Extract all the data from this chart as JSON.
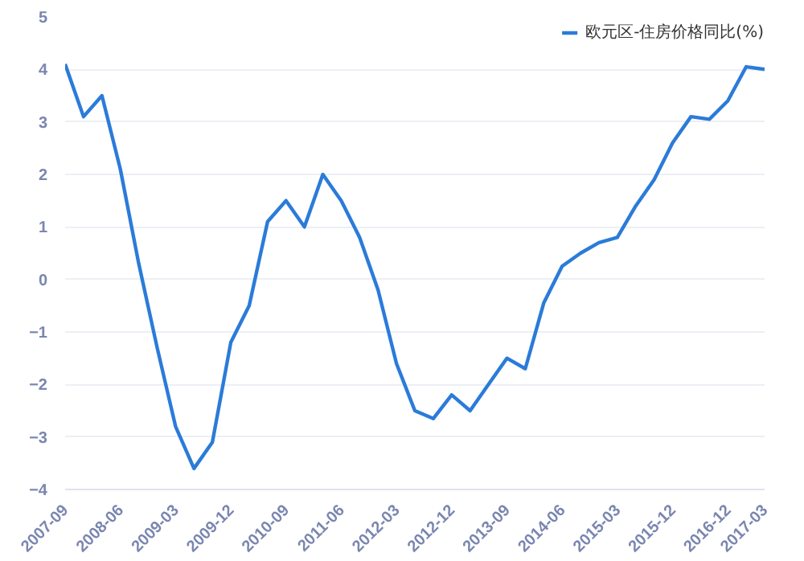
{
  "chart_data": {
    "type": "line",
    "categories": [
      "2007-09",
      null,
      null,
      "2008-06",
      null,
      null,
      "2009-03",
      null,
      null,
      "2009-12",
      null,
      null,
      "2010-09",
      null,
      null,
      "2011-06",
      null,
      null,
      "2012-03",
      null,
      null,
      "2012-12",
      null,
      null,
      "2013-09",
      null,
      null,
      "2014-06",
      null,
      null,
      "2015-03",
      null,
      null,
      "2015-12",
      null,
      null,
      "2016-12",
      null,
      "2017-03"
    ],
    "series": [
      {
        "name": "欧元区-住房价格同比(%)",
        "color": "#2b7bd9",
        "values": [
          4.1,
          3.1,
          3.5,
          2.1,
          0.3,
          -1.3,
          -2.8,
          -3.6,
          -3.1,
          -1.2,
          -0.5,
          1.1,
          1.5,
          1.0,
          2.0,
          1.5,
          0.8,
          -0.2,
          -1.6,
          -2.5,
          -2.65,
          -2.2,
          -2.5,
          -2.0,
          -1.5,
          -1.7,
          -0.45,
          0.25,
          0.5,
          0.7,
          0.8,
          1.4,
          1.9,
          2.6,
          3.1,
          3.05,
          3.4,
          4.05,
          4.0
        ]
      }
    ],
    "ylim": [
      -4,
      5
    ],
    "yticks": [
      -4,
      -3,
      -2,
      -1,
      0,
      1,
      2,
      3,
      4,
      5
    ],
    "grid": "y",
    "legend": "top right",
    "marker": "none",
    "line_style": "solid"
  }
}
